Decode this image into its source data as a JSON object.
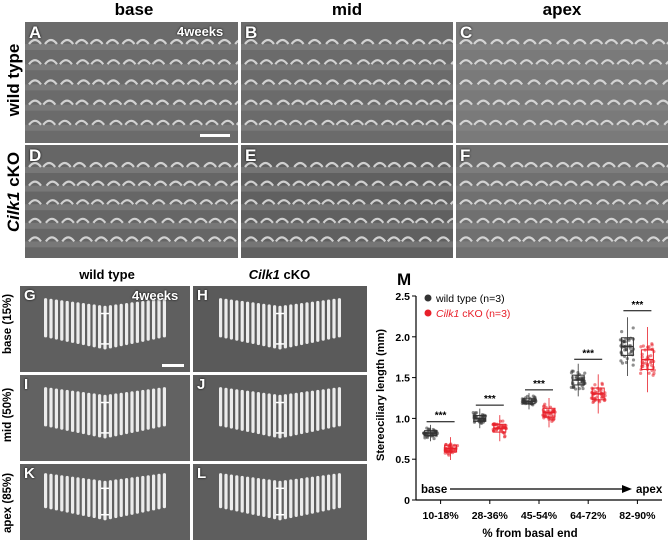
{
  "top_figure": {
    "columns": [
      "base",
      "mid",
      "apex"
    ],
    "rows": [
      "wild type",
      "Cilk1 cKO"
    ],
    "age_label": "4weeks",
    "panels": [
      "A",
      "B",
      "C",
      "D",
      "E",
      "F"
    ]
  },
  "bottom_figure": {
    "columns": [
      "wild type",
      "Cilk1 cKO"
    ],
    "rows": [
      "base (15%)",
      "mid (50%)",
      "apex (85%)"
    ],
    "age_label": "4weeks",
    "panels": [
      "G",
      "H",
      "I",
      "J",
      "K",
      "L"
    ]
  },
  "chart_panel_label": "M",
  "chart_data": {
    "type": "scatter",
    "categories": [
      "10-18%",
      "28-36%",
      "45-54%",
      "64-72%",
      "82-90%"
    ],
    "xlabel": "% from basal end",
    "ylabel": "Stereociliary length (mm)",
    "ylim": [
      0,
      2.5
    ],
    "yticks": [
      "0",
      "0.5",
      "1.0",
      "1.5",
      "2.0",
      "2.5"
    ],
    "series": [
      {
        "name": "wild type (n=3)",
        "color": "#333333",
        "means": [
          0.82,
          1.0,
          1.21,
          1.47,
          1.88
        ],
        "spread": [
          0.05,
          0.06,
          0.05,
          0.1,
          0.18
        ]
      },
      {
        "name": "Cilk1 cKO (n=3)",
        "color": "#e8202a",
        "means": [
          0.63,
          0.88,
          1.07,
          1.3,
          1.72
        ],
        "spread": [
          0.07,
          0.08,
          0.09,
          0.12,
          0.2
        ]
      }
    ],
    "significance": [
      "***",
      "***",
      "***",
      "***",
      "***"
    ],
    "axis_annotation": {
      "start": "base",
      "end": "apex"
    },
    "legend_position": "top-left"
  }
}
